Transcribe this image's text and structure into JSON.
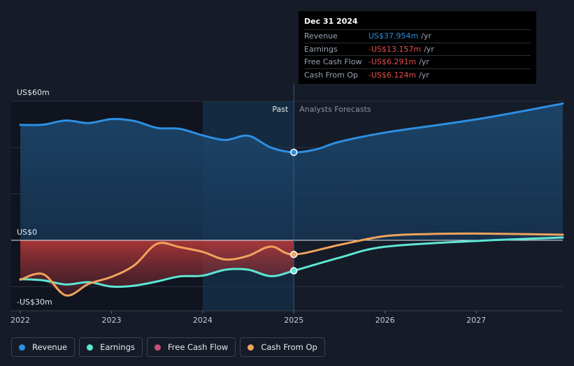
{
  "chart_data": {
    "type": "line",
    "title": "",
    "y_label_top": "US$60m",
    "y_label_zero": "US$0",
    "y_label_bottom": "-US$30m",
    "ylim": [
      -30,
      60
    ],
    "xlim": [
      2021.9,
      2027.95
    ],
    "x_ticks": [
      {
        "value": 2022,
        "label": "2022"
      },
      {
        "value": 2023,
        "label": "2023"
      },
      {
        "value": 2024,
        "label": "2024"
      },
      {
        "value": 2025,
        "label": "2025"
      },
      {
        "value": 2026,
        "label": "2026"
      },
      {
        "value": 2027,
        "label": "2027"
      }
    ],
    "divider_x": 2025.0,
    "highlight_start": 2024.0,
    "past_label": "Past",
    "forecast_label": "Analysts Forecasts",
    "series": [
      {
        "name": "Revenue",
        "color": "#2d8fe3",
        "points": [
          [
            2022.0,
            49.8
          ],
          [
            2022.25,
            49.9
          ],
          [
            2022.5,
            51.7
          ],
          [
            2022.75,
            50.6
          ],
          [
            2023.0,
            52.3
          ],
          [
            2023.25,
            51.5
          ],
          [
            2023.5,
            48.5
          ],
          [
            2023.75,
            48.1
          ],
          [
            2024.0,
            45.3
          ],
          [
            2024.25,
            43.3
          ],
          [
            2024.5,
            45.1
          ],
          [
            2024.75,
            40.0
          ],
          [
            2025.0,
            37.95
          ],
          [
            2025.25,
            39.3
          ],
          [
            2025.5,
            42.5
          ],
          [
            2026.0,
            46.5
          ],
          [
            2027.0,
            52.2
          ],
          [
            2027.95,
            59.0
          ]
        ]
      },
      {
        "name": "Earnings",
        "color": "#5ee6d3",
        "points": [
          [
            2022.0,
            -16.8
          ],
          [
            2022.25,
            -17.3
          ],
          [
            2022.5,
            -19.1
          ],
          [
            2022.75,
            -18.1
          ],
          [
            2023.0,
            -20.0
          ],
          [
            2023.25,
            -19.6
          ],
          [
            2023.5,
            -17.8
          ],
          [
            2023.75,
            -15.6
          ],
          [
            2024.0,
            -15.3
          ],
          [
            2024.25,
            -12.7
          ],
          [
            2024.5,
            -12.7
          ],
          [
            2024.75,
            -15.5
          ],
          [
            2025.0,
            -13.16
          ],
          [
            2025.5,
            -7.5
          ],
          [
            2026.0,
            -2.8
          ],
          [
            2027.0,
            -0.3
          ],
          [
            2027.95,
            1.2
          ]
        ]
      },
      {
        "name": "Free Cash Flow",
        "color": "#c94e7d",
        "points": []
      },
      {
        "name": "Cash From Op",
        "color": "#f0a35c",
        "points": [
          [
            2022.0,
            -17.0
          ],
          [
            2022.25,
            -14.6
          ],
          [
            2022.5,
            -23.8
          ],
          [
            2022.75,
            -18.8
          ],
          [
            2023.0,
            -15.8
          ],
          [
            2023.25,
            -10.8
          ],
          [
            2023.5,
            -1.5
          ],
          [
            2023.75,
            -3.0
          ],
          [
            2024.0,
            -5.0
          ],
          [
            2024.25,
            -8.3
          ],
          [
            2024.5,
            -6.7
          ],
          [
            2024.75,
            -2.7
          ],
          [
            2025.0,
            -6.12
          ],
          [
            2025.5,
            -2.0
          ],
          [
            2026.0,
            1.8
          ],
          [
            2026.5,
            2.7
          ],
          [
            2027.0,
            2.9
          ],
          [
            2027.95,
            2.4
          ]
        ]
      }
    ],
    "tooltip": {
      "date": "Dec 31 2024",
      "unit": "/yr",
      "rows": [
        {
          "label": "Revenue",
          "value": "US$37.954m",
          "color": "#2d8fe3"
        },
        {
          "label": "Earnings",
          "value": "-US$13.157m",
          "color": "#e64d4d"
        },
        {
          "label": "Free Cash Flow",
          "value": "-US$6.291m",
          "color": "#e64d4d"
        },
        {
          "label": "Cash From Op",
          "value": "-US$6.124m",
          "color": "#e64d4d"
        }
      ]
    }
  },
  "legend": {
    "items": [
      {
        "label": "Revenue",
        "color": "#2d8fe3"
      },
      {
        "label": "Earnings",
        "color": "#5ee6d3"
      },
      {
        "label": "Free Cash Flow",
        "color": "#c94e7d"
      },
      {
        "label": "Cash From Op",
        "color": "#f0a35c"
      }
    ]
  }
}
